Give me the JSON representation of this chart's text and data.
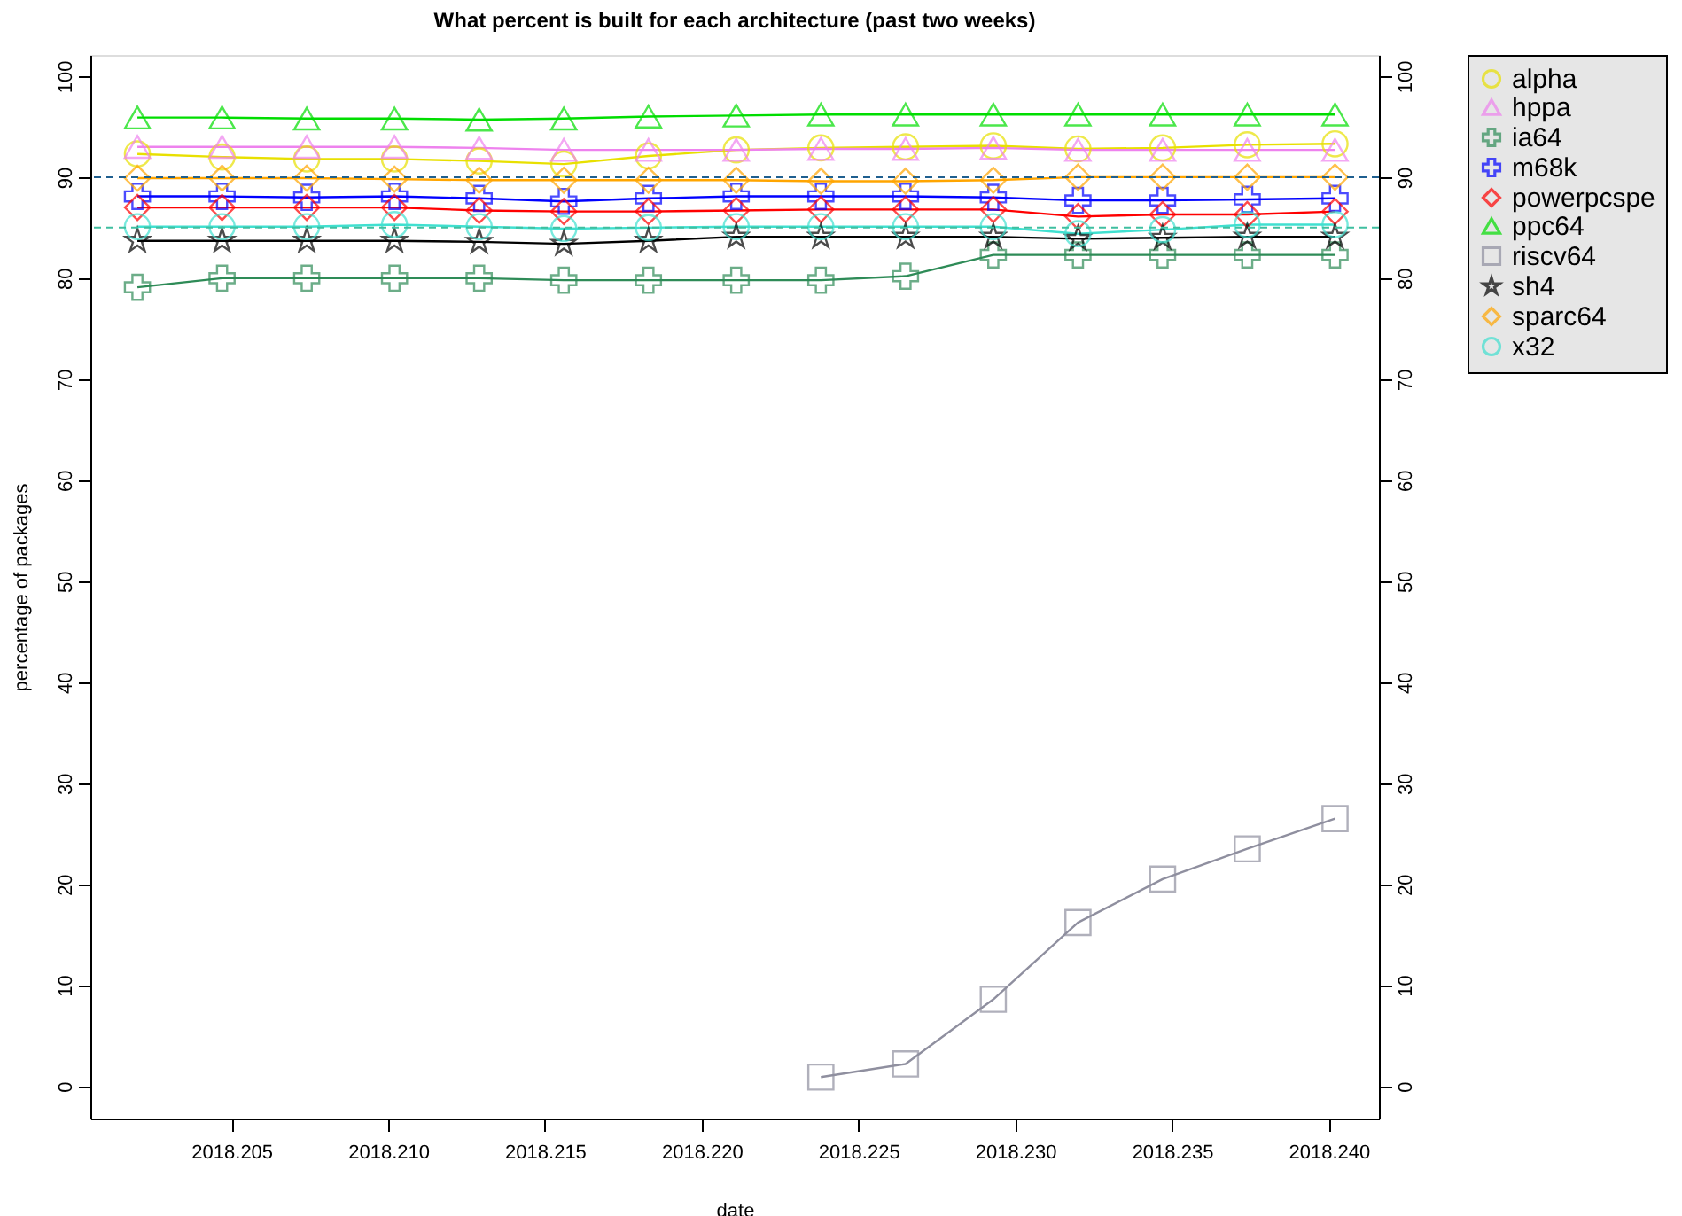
{
  "chart_data": {
    "type": "line",
    "title": "What percent is built for each architecture (past two weeks)",
    "xlabel": "date",
    "ylabel": "percentage of packages",
    "x": [
      2018.202,
      2018.2047,
      2018.2074,
      2018.2102,
      2018.2129,
      2018.2156,
      2018.2183,
      2018.2211,
      2018.2238,
      2018.2265,
      2018.2293,
      2018.232,
      2018.2347,
      2018.2374,
      2018.2402
    ],
    "series": [
      {
        "name": "alpha",
        "color": "#e8e000",
        "marker": "circle",
        "values": [
          92.3,
          92.0,
          91.8,
          91.8,
          91.6,
          91.3,
          92.1,
          92.7,
          92.9,
          93.0,
          93.1,
          92.8,
          92.9,
          93.2,
          93.3
        ]
      },
      {
        "name": "hppa",
        "color": "#ee82ee",
        "marker": "triangle",
        "values": [
          93.0,
          93.0,
          93.0,
          93.0,
          92.9,
          92.7,
          92.7,
          92.7,
          92.8,
          92.8,
          92.9,
          92.7,
          92.7,
          92.7,
          92.7
        ]
      },
      {
        "name": "ia64",
        "color": "#2e8b57",
        "marker": "cross",
        "values": [
          79.1,
          80.0,
          80.0,
          80.0,
          80.0,
          79.8,
          79.8,
          79.8,
          79.8,
          80.2,
          82.3,
          82.3,
          82.3,
          82.3,
          82.3
        ]
      },
      {
        "name": "m68k",
        "color": "#0000ff",
        "marker": "cross",
        "values": [
          88.1,
          88.1,
          88.0,
          88.1,
          87.9,
          87.6,
          87.9,
          88.1,
          88.1,
          88.1,
          88.0,
          87.7,
          87.7,
          87.8,
          87.9
        ]
      },
      {
        "name": "powerpcspe",
        "color": "#ff0000",
        "marker": "diamond",
        "values": [
          87.0,
          87.0,
          87.0,
          87.0,
          86.7,
          86.6,
          86.6,
          86.7,
          86.8,
          86.8,
          86.8,
          86.1,
          86.3,
          86.3,
          86.6
        ]
      },
      {
        "name": "ppc64",
        "color": "#00dd00",
        "marker": "triangle",
        "values": [
          95.9,
          95.9,
          95.8,
          95.8,
          95.7,
          95.8,
          96.0,
          96.1,
          96.2,
          96.2,
          96.2,
          96.2,
          96.2,
          96.2,
          96.2
        ]
      },
      {
        "name": "riscv64",
        "color": "#8f8f9f",
        "marker": "square",
        "values": [
          null,
          null,
          null,
          null,
          null,
          null,
          null,
          null,
          0.9,
          2.2,
          8.6,
          16.2,
          20.5,
          23.5,
          26.5
        ]
      },
      {
        "name": "sh4",
        "color": "#000000",
        "marker": "star",
        "values": [
          83.7,
          83.7,
          83.7,
          83.7,
          83.6,
          83.4,
          83.7,
          84.1,
          84.1,
          84.1,
          84.1,
          83.9,
          84.0,
          84.1,
          84.1
        ]
      },
      {
        "name": "sparc64",
        "color": "#ffa500",
        "marker": "diamond",
        "values": [
          89.9,
          89.9,
          89.9,
          89.8,
          89.7,
          89.7,
          89.7,
          89.7,
          89.6,
          89.6,
          89.7,
          90.0,
          90.0,
          90.0,
          90.0
        ]
      },
      {
        "name": "x32",
        "color": "#40e0d0",
        "marker": "circle",
        "values": [
          85.1,
          85.1,
          85.1,
          85.3,
          85.1,
          84.9,
          85.0,
          85.1,
          85.1,
          85.1,
          85.1,
          84.4,
          84.8,
          85.3,
          85.3
        ]
      }
    ],
    "ref_lines": [
      {
        "axis": "y",
        "value": 90,
        "color": "#1f5f8f",
        "line_style": "dashed"
      },
      {
        "axis": "y",
        "value": 85,
        "color": "#3fbfa0",
        "line_style": "dashed"
      }
    ],
    "xlim": [
      2018.2005,
      2018.2416
    ],
    "xticks": [
      2018.205,
      {
        "value": 2018.21,
        "label": "2018.210"
      },
      2018.215,
      {
        "value": 2018.22,
        "label": "2018.220"
      },
      2018.225,
      {
        "value": 2018.23,
        "label": "2018.230"
      },
      2018.235,
      {
        "value": 2018.24,
        "label": "2018.240"
      }
    ],
    "ylim": [
      -3.2,
      102.1
    ],
    "yticks": [
      0,
      10,
      20,
      30,
      40,
      50,
      60,
      70,
      80,
      90,
      100
    ],
    "y2lim": [
      -3.2,
      102.1
    ],
    "y2ticks": [
      0,
      10,
      20,
      30,
      40,
      50,
      60,
      70,
      80,
      90,
      100
    ],
    "grid": false,
    "legend": "top right"
  }
}
